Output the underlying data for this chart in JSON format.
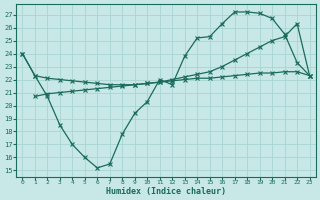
{
  "xlabel": "Humidex (Indice chaleur)",
  "bg_color": "#c8e8e8",
  "grid_color": "#a8d4d4",
  "line_color": "#1a6b5a",
  "xlim": [
    -0.5,
    23.5
  ],
  "ylim": [
    14.5,
    27.8
  ],
  "yticks": [
    15,
    16,
    17,
    18,
    19,
    20,
    21,
    22,
    23,
    24,
    25,
    26,
    27
  ],
  "xticks": [
    0,
    1,
    2,
    3,
    4,
    5,
    6,
    7,
    8,
    9,
    10,
    11,
    12,
    13,
    14,
    15,
    16,
    17,
    18,
    19,
    20,
    21,
    22,
    23
  ],
  "line1_x": [
    0,
    1,
    2,
    3,
    4,
    5,
    6,
    7,
    8,
    9,
    10,
    11,
    12,
    13,
    14,
    15,
    16,
    17,
    18,
    19,
    20,
    21,
    22,
    23
  ],
  "line1_y": [
    24.0,
    22.3,
    22.1,
    22.0,
    21.9,
    21.8,
    21.7,
    21.6,
    21.6,
    21.6,
    21.7,
    21.8,
    21.9,
    22.0,
    22.1,
    22.1,
    22.2,
    22.3,
    22.4,
    22.5,
    22.5,
    22.6,
    22.6,
    22.3
  ],
  "line2_x": [
    0,
    1,
    2,
    3,
    4,
    5,
    6,
    7,
    8,
    9,
    10,
    11,
    12,
    13,
    14,
    15,
    16,
    17,
    18,
    19,
    20,
    21,
    22,
    23
  ],
  "line2_y": [
    24.0,
    22.3,
    20.7,
    18.5,
    17.0,
    16.0,
    15.2,
    15.5,
    17.8,
    19.4,
    20.3,
    22.0,
    21.6,
    23.8,
    25.2,
    25.3,
    26.3,
    27.2,
    27.2,
    27.1,
    26.7,
    25.5,
    23.3,
    22.3
  ],
  "line3_x": [
    1,
    2,
    3,
    4,
    5,
    6,
    7,
    8,
    9,
    10,
    11,
    12,
    13,
    14,
    15,
    16,
    17,
    18,
    19,
    20,
    21,
    22,
    23
  ],
  "line3_y": [
    20.7,
    20.9,
    21.0,
    21.1,
    21.2,
    21.3,
    21.4,
    21.5,
    21.6,
    21.7,
    21.8,
    22.0,
    22.2,
    22.4,
    22.6,
    23.0,
    23.5,
    24.0,
    24.5,
    25.0,
    25.3,
    26.3,
    22.3
  ]
}
